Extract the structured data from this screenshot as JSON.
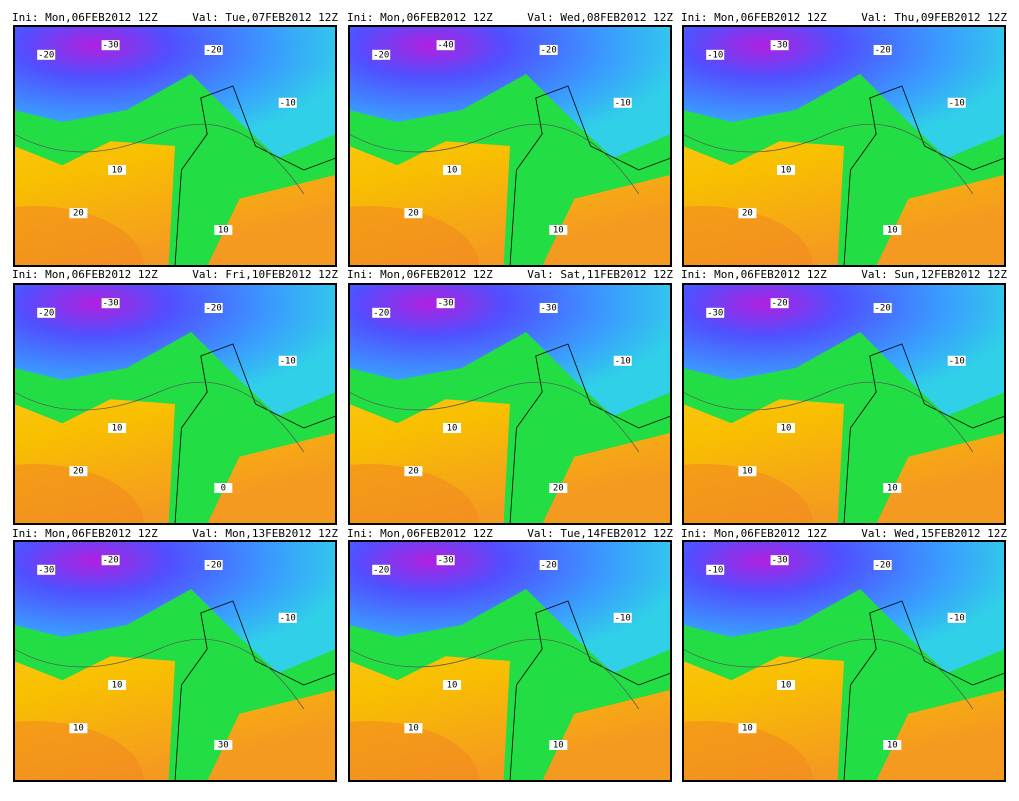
{
  "panels": [
    {
      "init": "Ini: Mon,06FEB2012 12Z",
      "valid": "Val: Tue,07FEB2012 12Z",
      "contour_labels": [
        "-20",
        "-30",
        "-20",
        "-10",
        "10",
        "20",
        "10"
      ]
    },
    {
      "init": "Ini: Mon,06FEB2012 12Z",
      "valid": "Val: Wed,08FEB2012 12Z",
      "contour_labels": [
        "-20",
        "-40",
        "-20",
        "-10",
        "10",
        "20",
        "10"
      ]
    },
    {
      "init": "Ini: Mon,06FEB2012 12Z",
      "valid": "Val: Thu,09FEB2012 12Z",
      "contour_labels": [
        "-10",
        "-30",
        "-20",
        "-10",
        "10",
        "20",
        "10"
      ]
    },
    {
      "init": "Ini: Mon,06FEB2012 12Z",
      "valid": "Val: Fri,10FEB2012 12Z",
      "contour_labels": [
        "-20",
        "-30",
        "-20",
        "-10",
        "10",
        "20",
        "0"
      ]
    },
    {
      "init": "Ini: Mon,06FEB2012 12Z",
      "valid": "Val: Sat,11FEB2012 12Z",
      "contour_labels": [
        "-20",
        "-30",
        "-30",
        "-10",
        "10",
        "20",
        "20"
      ]
    },
    {
      "init": "Ini: Mon,06FEB2012 12Z",
      "valid": "Val: Sun,12FEB2012 12Z",
      "contour_labels": [
        "-30",
        "-20",
        "-20",
        "-10",
        "10",
        "10",
        "10"
      ]
    },
    {
      "init": "Ini: Mon,06FEB2012 12Z",
      "valid": "Val: Mon,13FEB2012 12Z",
      "contour_labels": [
        "-30",
        "-20",
        "-20",
        "-10",
        "10",
        "10",
        "30"
      ]
    },
    {
      "init": "Ini: Mon,06FEB2012 12Z",
      "valid": "Val: Tue,14FEB2012 12Z",
      "contour_labels": [
        "-20",
        "-30",
        "-20",
        "-10",
        "10",
        "10",
        "10"
      ]
    },
    {
      "init": "Ini: Mon,06FEB2012 12Z",
      "valid": "Val: Wed,15FEB2012 12Z",
      "contour_labels": [
        "-10",
        "-30",
        "-20",
        "-10",
        "10",
        "10",
        "10"
      ]
    }
  ]
}
